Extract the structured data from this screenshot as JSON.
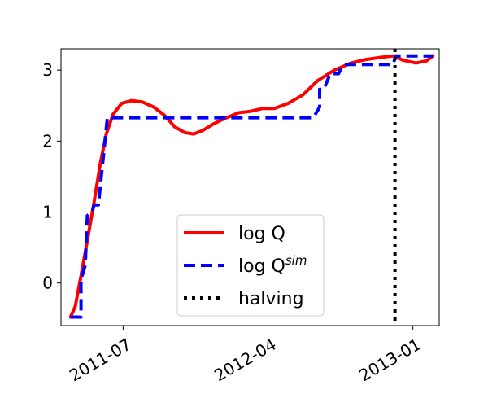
{
  "chart_data": {
    "type": "line",
    "title": "",
    "xlabel": "",
    "ylabel": "",
    "x_axis": {
      "type": "date",
      "range": [
        "2011-03-05",
        "2013-02-20"
      ],
      "ticks": [
        {
          "value": "2011-07-01",
          "label": "2011-07"
        },
        {
          "value": "2012-04-01",
          "label": "2012-04"
        },
        {
          "value": "2013-01-01",
          "label": "2013-01"
        }
      ]
    },
    "y_axis": {
      "range": [
        -0.6,
        3.3
      ],
      "ticks": [
        {
          "value": 0,
          "label": "0"
        },
        {
          "value": 1,
          "label": "1"
        },
        {
          "value": 2,
          "label": "2"
        },
        {
          "value": 3,
          "label": "3"
        }
      ]
    },
    "grid": false,
    "legend_position": "lower-center",
    "series": [
      {
        "name": "log Q",
        "style": "solid",
        "color": "#ff0000",
        "points": [
          {
            "x": "2011-03-23",
            "y": -0.48
          },
          {
            "x": "2011-04-01",
            "y": -0.33
          },
          {
            "x": "2011-04-12",
            "y": 0.1
          },
          {
            "x": "2011-04-24",
            "y": 0.6
          },
          {
            "x": "2011-05-07",
            "y": 1.15
          },
          {
            "x": "2011-05-19",
            "y": 1.7
          },
          {
            "x": "2011-05-30",
            "y": 2.1
          },
          {
            "x": "2011-06-12",
            "y": 2.38
          },
          {
            "x": "2011-06-28",
            "y": 2.53
          },
          {
            "x": "2011-07-17",
            "y": 2.57
          },
          {
            "x": "2011-08-07",
            "y": 2.55
          },
          {
            "x": "2011-08-28",
            "y": 2.48
          },
          {
            "x": "2011-09-18",
            "y": 2.36
          },
          {
            "x": "2011-10-07",
            "y": 2.2
          },
          {
            "x": "2011-10-26",
            "y": 2.12
          },
          {
            "x": "2011-11-12",
            "y": 2.1
          },
          {
            "x": "2011-11-29",
            "y": 2.15
          },
          {
            "x": "2011-12-19",
            "y": 2.24
          },
          {
            "x": "2012-01-07",
            "y": 2.31
          },
          {
            "x": "2012-02-05",
            "y": 2.4
          },
          {
            "x": "2012-02-28",
            "y": 2.42
          },
          {
            "x": "2012-03-22",
            "y": 2.46
          },
          {
            "x": "2012-04-13",
            "y": 2.46
          },
          {
            "x": "2012-05-09",
            "y": 2.53
          },
          {
            "x": "2012-06-06",
            "y": 2.65
          },
          {
            "x": "2012-07-04",
            "y": 2.85
          },
          {
            "x": "2012-08-05",
            "y": 3.0
          },
          {
            "x": "2012-09-06",
            "y": 3.1
          },
          {
            "x": "2012-10-04",
            "y": 3.15
          },
          {
            "x": "2012-11-01",
            "y": 3.18
          },
          {
            "x": "2012-11-25",
            "y": 3.2
          },
          {
            "x": "2012-12-13",
            "y": 3.14
          },
          {
            "x": "2013-01-07",
            "y": 3.1
          },
          {
            "x": "2013-01-27",
            "y": 3.13
          },
          {
            "x": "2013-02-08",
            "y": 3.2
          }
        ]
      },
      {
        "name": "log Q^sim",
        "name_base": "log Q",
        "name_superscript": "sim",
        "style": "dashed",
        "color": "#0000ff",
        "points": [
          {
            "x": "2011-03-23",
            "y": -0.48
          },
          {
            "x": "2011-04-12",
            "y": -0.48
          },
          {
            "x": "2011-04-12",
            "y": 0.05
          },
          {
            "x": "2011-04-20",
            "y": 0.25
          },
          {
            "x": "2011-04-24",
            "y": 0.95
          },
          {
            "x": "2011-05-03",
            "y": 1.0
          },
          {
            "x": "2011-05-07",
            "y": 1.1
          },
          {
            "x": "2011-05-15",
            "y": 1.1
          },
          {
            "x": "2011-06-01",
            "y": 2.33
          },
          {
            "x": "2012-06-26",
            "y": 2.33
          },
          {
            "x": "2012-07-08",
            "y": 2.48
          },
          {
            "x": "2012-07-08",
            "y": 2.73
          },
          {
            "x": "2012-07-16",
            "y": 2.73
          },
          {
            "x": "2012-07-28",
            "y": 2.95
          },
          {
            "x": "2012-08-13",
            "y": 2.95
          },
          {
            "x": "2012-08-21",
            "y": 3.08
          },
          {
            "x": "2012-11-25",
            "y": 3.08
          },
          {
            "x": "2012-11-29",
            "y": 3.2
          },
          {
            "x": "2013-02-08",
            "y": 3.2
          }
        ]
      }
    ],
    "vertical_lines": [
      {
        "name": "halving",
        "x": "2012-11-28",
        "style": "dotted",
        "color": "#000000"
      }
    ]
  }
}
